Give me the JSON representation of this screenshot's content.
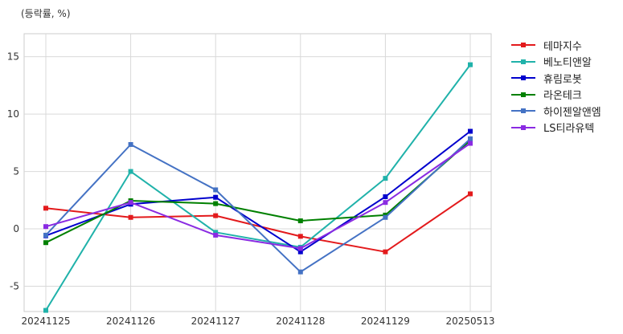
{
  "unit_label": "(등락률, %)",
  "chart_data": {
    "type": "line",
    "categories": [
      "20241125",
      "20241126",
      "20241127",
      "20241128",
      "20241129",
      "20250513"
    ],
    "ylim": [
      -7.2,
      17
    ],
    "yticks": [
      -5,
      0,
      5,
      10,
      15
    ],
    "ytick_labels": [
      "-5",
      "0",
      "5",
      "10",
      "15"
    ],
    "grid": true,
    "legend_position": "right",
    "series": [
      {
        "name": "테마지수",
        "color": "#e31a1c",
        "values": [
          1.8,
          1.0,
          1.15,
          -0.65,
          -2.0,
          3.05
        ]
      },
      {
        "name": "베노티앤알",
        "color": "#20b2aa",
        "values": [
          -7.1,
          5.0,
          -0.3,
          -1.6,
          4.4,
          14.3
        ]
      },
      {
        "name": "휴림로봇",
        "color": "#0000cd",
        "values": [
          -0.6,
          2.15,
          2.75,
          -2.0,
          2.8,
          8.5
        ]
      },
      {
        "name": "라온테크",
        "color": "#008000",
        "values": [
          -1.2,
          2.45,
          2.2,
          0.7,
          1.2,
          7.7
        ]
      },
      {
        "name": "하이젠알앤엠",
        "color": "#4472c4",
        "values": [
          -0.55,
          7.35,
          3.4,
          -3.75,
          1.0,
          7.85
        ]
      },
      {
        "name": "LS티라유텍",
        "color": "#8a2be2",
        "values": [
          0.2,
          2.3,
          -0.55,
          -1.7,
          2.3,
          7.45
        ]
      }
    ]
  }
}
